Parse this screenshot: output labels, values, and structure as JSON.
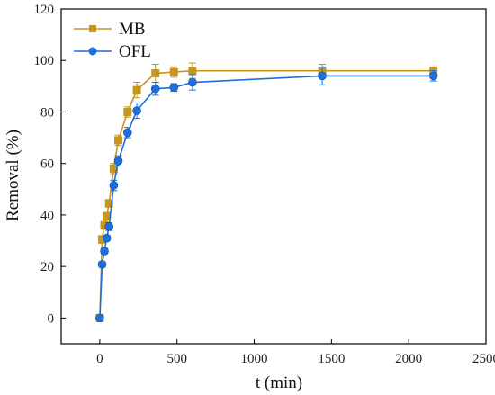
{
  "chart_data": {
    "type": "line",
    "xlabel": "t (min)",
    "ylabel": "Removal (%)",
    "xlim": [
      -250,
      2500
    ],
    "ylim": [
      -10,
      120
    ],
    "xticks": [
      0,
      500,
      1000,
      1500,
      2000,
      2500
    ],
    "yticks": [
      0,
      20,
      40,
      60,
      80,
      100,
      120
    ],
    "grid": false,
    "legend_position": "top-left",
    "series": [
      {
        "name": "MB",
        "color": "#C8961E",
        "marker": "square",
        "x": [
          0,
          15,
          30,
          45,
          60,
          90,
          120,
          180,
          240,
          360,
          480,
          600,
          1440,
          2160
        ],
        "y": [
          0,
          30.5,
          36,
          39.5,
          44.5,
          58,
          69,
          80,
          88.5,
          95,
          95.5,
          96,
          96,
          96
        ],
        "err": [
          1,
          1.5,
          1.5,
          1.5,
          1.5,
          2,
          2,
          2,
          3,
          3.5,
          2,
          3,
          2.5,
          1.5
        ]
      },
      {
        "name": "OFL",
        "color": "#1E6FD9",
        "marker": "circle",
        "x": [
          0,
          15,
          30,
          45,
          60,
          90,
          120,
          180,
          240,
          360,
          480,
          600,
          1440,
          2160
        ],
        "y": [
          0,
          20.8,
          26,
          31,
          35.5,
          51.5,
          61,
          72,
          80.5,
          89,
          89.5,
          91.5,
          94,
          94
        ],
        "err": [
          0.8,
          1,
          1,
          1,
          1.5,
          2,
          2,
          2,
          3,
          2.5,
          1.5,
          3,
          3.5,
          2
        ]
      }
    ]
  }
}
